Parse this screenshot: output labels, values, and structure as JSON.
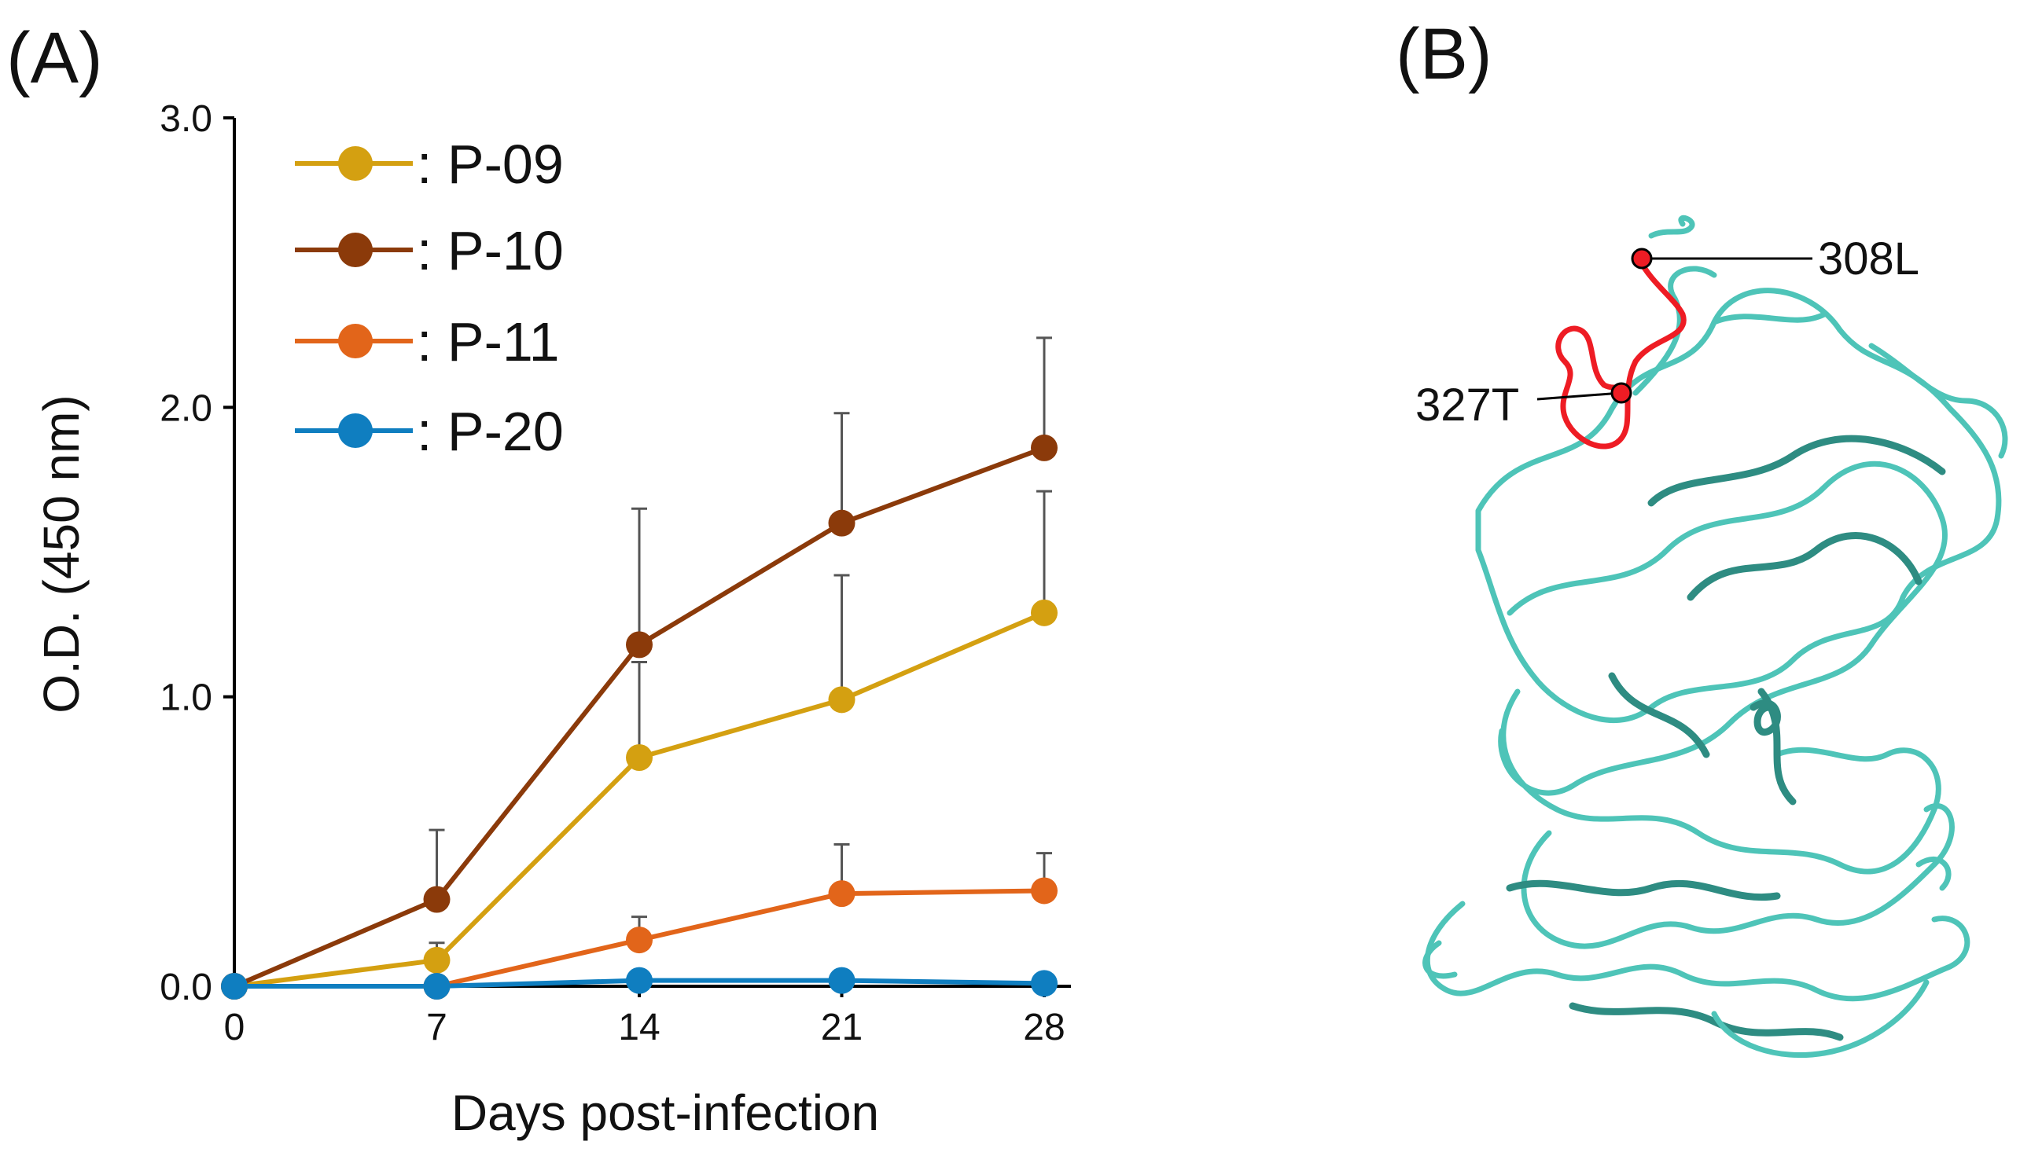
{
  "panels": {
    "a_label": "(A)",
    "b_label": "(B)"
  },
  "chart_data": {
    "type": "line",
    "xlabel": "Days post-infection",
    "ylabel": "O.D. (450 nm)",
    "x": [
      0,
      7,
      14,
      21,
      28
    ],
    "x_tick_labels": [
      "0",
      "7",
      "14",
      "21",
      "28"
    ],
    "y_tick_labels": [
      "0.0",
      "1.0",
      "2.0",
      "3.0"
    ],
    "ylim": [
      0,
      3.0
    ],
    "legend_position": "top-left",
    "series": [
      {
        "name": ": P-09",
        "color": "#D4A011",
        "values": [
          0.0,
          0.09,
          0.79,
          0.99,
          1.29
        ],
        "errors": [
          0,
          0.06,
          0.33,
          0.43,
          0.42
        ]
      },
      {
        "name": ": P-10",
        "color": "#8B3A0A",
        "values": [
          0.0,
          0.3,
          1.18,
          1.6,
          1.86
        ],
        "errors": [
          0,
          0.24,
          0.47,
          0.38,
          0.38
        ]
      },
      {
        "name": ": P-11",
        "color": "#E2651A",
        "values": [
          0.0,
          0.0,
          0.16,
          0.32,
          0.33
        ],
        "errors": [
          0,
          0,
          0.08,
          0.17,
          0.13
        ]
      },
      {
        "name": ": P-20",
        "color": "#0F7EC0",
        "values": [
          0.0,
          0.0,
          0.02,
          0.02,
          0.01
        ],
        "errors": [
          0,
          0,
          0,
          0,
          0
        ]
      }
    ]
  },
  "structure": {
    "annotations": [
      "308L",
      "327T"
    ],
    "ribbon_color": "#4EC4B8",
    "ribbon_dark_color": "#2E8C82",
    "highlight_color": "#EE1C24"
  }
}
